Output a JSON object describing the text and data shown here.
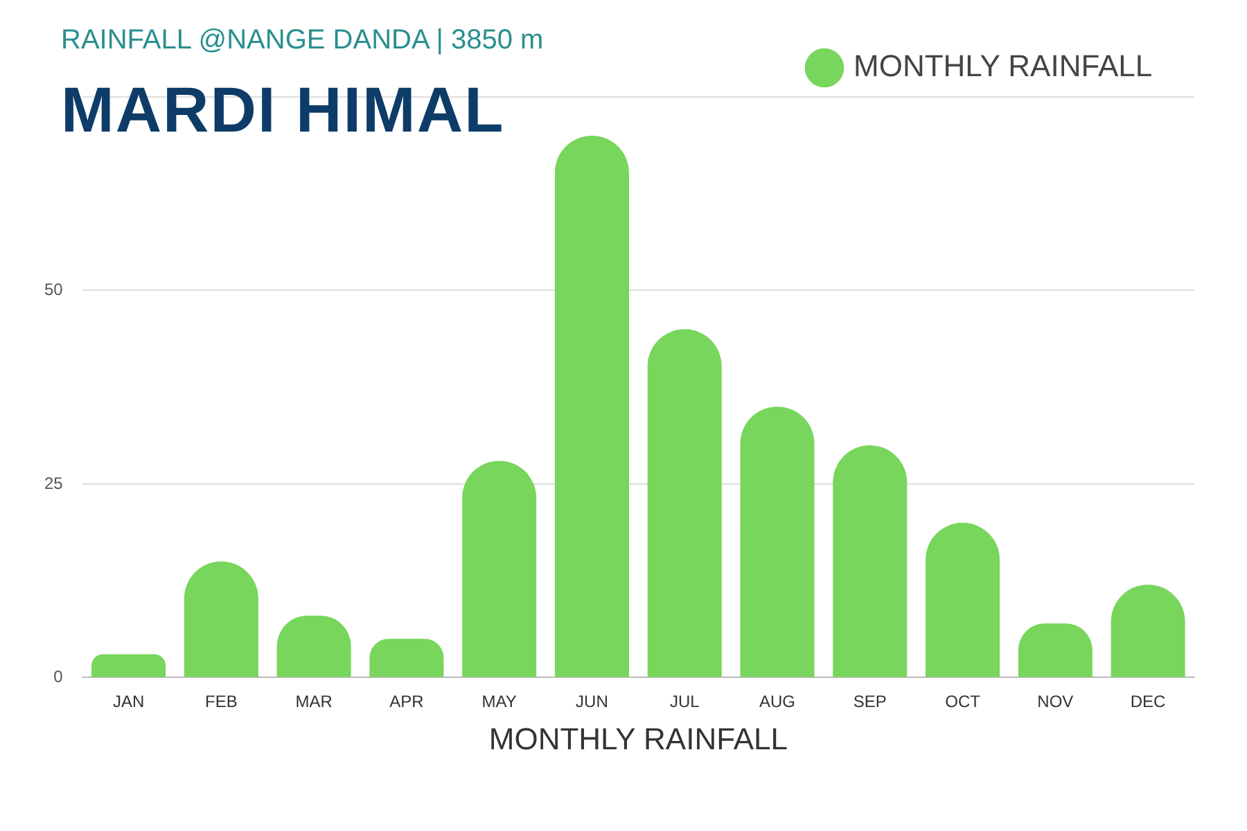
{
  "chart_data": {
    "type": "bar",
    "title": "MARDI HIMAL",
    "subtitle": "RAINFALL @NANGE DANDA | 3850 m",
    "xlabel": "MONTHLY RAINFALL",
    "categories": [
      "JAN",
      "FEB",
      "MAR",
      "APR",
      "MAY",
      "JUN",
      "JUL",
      "AUG",
      "SEP",
      "OCT",
      "NOV",
      "DEC"
    ],
    "series": [
      {
        "name": "MONTHLY RAINFALL",
        "color": "#77d65b",
        "values": [
          3,
          15,
          8,
          5,
          28,
          70,
          45,
          35,
          30,
          20,
          7,
          12
        ]
      }
    ],
    "ylim": [
      0,
      75
    ],
    "yticks": [
      0,
      25,
      50,
      {
        "value": 75,
        "label": null
      }
    ],
    "grid": "y",
    "legend": "top right"
  }
}
